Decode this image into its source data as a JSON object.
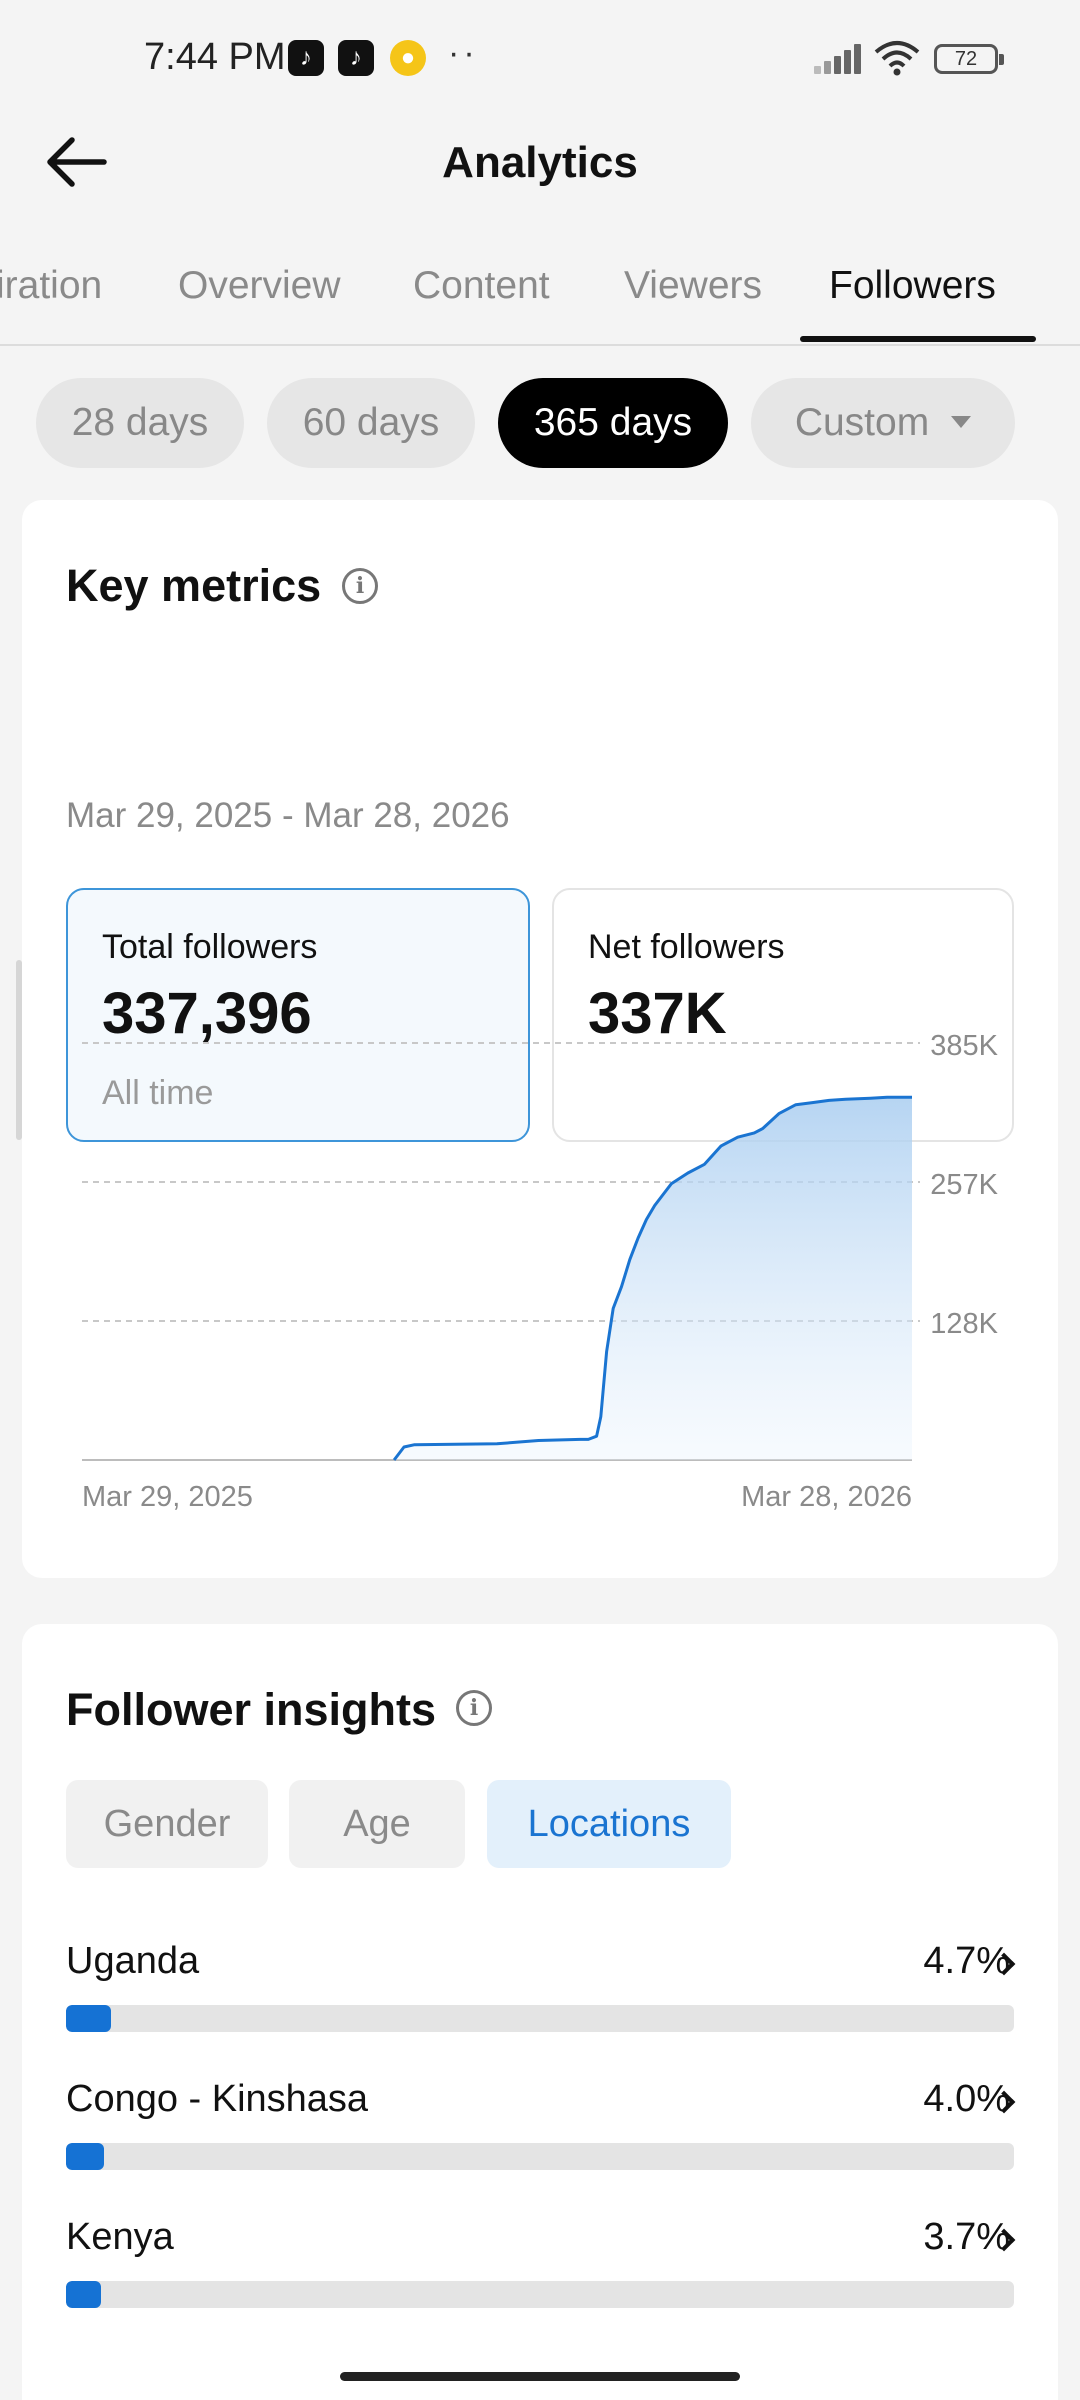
{
  "status_bar": {
    "time": "7:44 PM",
    "battery": "72",
    "notification_icons": [
      "tiktok-icon",
      "tiktok-icon",
      "coin-icon"
    ]
  },
  "header": {
    "title": "Analytics",
    "back_icon": "back-arrow-icon"
  },
  "tabs": [
    {
      "label": "iration",
      "active": false
    },
    {
      "label": "Overview",
      "active": false
    },
    {
      "label": "Content",
      "active": false
    },
    {
      "label": "Viewers",
      "active": false
    },
    {
      "label": "Followers",
      "active": true
    }
  ],
  "ranges": [
    {
      "label": "28 days",
      "active": false
    },
    {
      "label": "60 days",
      "active": false
    },
    {
      "label": "365 days",
      "active": true
    },
    {
      "label": "Custom",
      "active": false
    }
  ],
  "key_metrics": {
    "title": "Key metrics",
    "date_range": "Mar 29, 2025 - Mar 28, 2026",
    "total_followers": {
      "label": "Total followers",
      "value": "337,396",
      "sub": "All time"
    },
    "net_followers": {
      "label": "Net followers",
      "value": "337K"
    }
  },
  "chart_data": {
    "type": "area",
    "y_ticks": [
      "385K",
      "257K",
      "128K"
    ],
    "ylim": [
      0,
      385000
    ],
    "x_tick_labels": [
      "Mar 29, 2025",
      "Mar 28, 2026"
    ],
    "grid": true,
    "color": "#1a74d1",
    "series": [
      {
        "x": [
          0.0,
          0.376,
          0.388,
          0.4,
          0.45,
          0.5,
          0.55,
          0.6,
          0.61,
          0.62,
          0.625,
          0.632,
          0.64,
          0.65,
          0.66,
          0.67,
          0.68,
          0.69,
          0.7,
          0.71,
          0.72,
          0.73,
          0.75,
          0.77,
          0.79,
          0.81,
          0.82,
          0.84,
          0.86,
          0.88,
          0.9,
          0.92,
          0.95,
          0.97,
          1.0
        ],
        "values": [
          0,
          0,
          12000,
          14000,
          14500,
          15000,
          18000,
          19000,
          19000,
          22000,
          40000,
          100000,
          140000,
          160000,
          185000,
          205000,
          222000,
          235000,
          245000,
          255000,
          260000,
          265000,
          273000,
          290000,
          298000,
          302000,
          306000,
          320000,
          328000,
          330000,
          332000,
          333000,
          334000,
          335000,
          335000
        ]
      }
    ]
  },
  "insights": {
    "title": "Follower insights",
    "segments": [
      {
        "label": "Gender",
        "active": false
      },
      {
        "label": "Age",
        "active": false
      },
      {
        "label": "Locations",
        "active": true
      }
    ],
    "locations": [
      {
        "name": "Uganda",
        "pct_label": "4.7%",
        "fraction": 0.047
      },
      {
        "name": "Congo - Kinshasa",
        "pct_label": "4.0%",
        "fraction": 0.04
      },
      {
        "name": "Kenya",
        "pct_label": "3.7%",
        "fraction": 0.037
      }
    ]
  }
}
